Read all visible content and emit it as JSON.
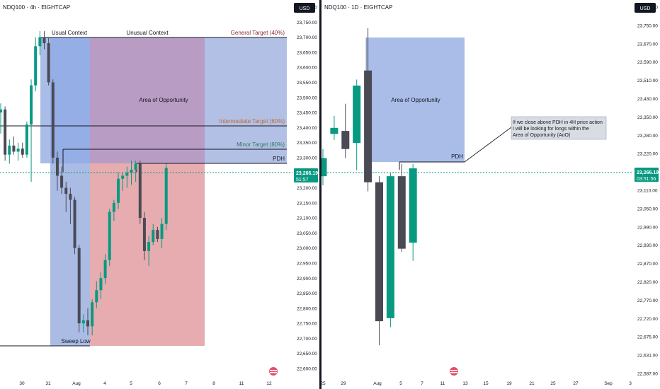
{
  "colors": {
    "bg": "#ffffff",
    "grid": "#f0f3fa",
    "text": "#131722",
    "axisText": "#131722",
    "bull": "#089981",
    "bear": "#4a4a55",
    "zoneBlue": "#a8b9e4",
    "zoneBlueStrong": "#7f9fe3",
    "zonePurple": "#b89bc6",
    "zoneRed": "#e8a7ad",
    "priceTag": "#089981",
    "separator": "#131722"
  },
  "left_chart": {
    "title": "NDQ100 · 4h · EIGHTCAP",
    "currency": "USD",
    "labels": {
      "usual_context": "Usual Context",
      "unusual_context": "Unusual Context",
      "general_target": "General Target (40%)",
      "area_of_opportunity": "Area of Opportunity",
      "intermediate_target": "Intermediate Target (60%)",
      "minor_target": "Minor Target (80%)",
      "pdh": "PDH",
      "sweep_low": "Sweep Low"
    },
    "price_tag": {
      "price": "23,266.19",
      "countdown": "51:57"
    },
    "x_ticks": [
      "30",
      "31",
      "Aug",
      "4",
      "5",
      "6",
      "7",
      "8",
      "11",
      "12"
    ],
    "y_ticks": [
      "23,800.00",
      "23,750.00",
      "23,700.00",
      "23,650.00",
      "23,600.00",
      "23,550.00",
      "23,500.00",
      "23,450.00",
      "23,400.00",
      "23,350.00",
      "23,300.00",
      "23,250.00",
      "23,200.00",
      "23,150.00",
      "23,100.00",
      "23,050.00",
      "23,000.00",
      "22,950.00",
      "22,900.00",
      "22,850.00",
      "22,800.00",
      "22,750.00",
      "22,700.00",
      "22,650.00",
      "22,600.00"
    ]
  },
  "right_chart": {
    "title": "NDQ100 · 1D · EIGHTCAP",
    "currency": "USD",
    "labels": {
      "area_of_opportunity": "Area of Opportunity",
      "pdh": "PDH",
      "note_line1": "If we close above PDH in 4H price action",
      "note_line2": "I will be looking for longs within the",
      "note_line3": "Area of Opportunity (AoO)"
    },
    "price_tag": {
      "price": "23,266.19",
      "countdown": "03:51:56"
    },
    "x_ticks": [
      "25",
      "29",
      "Aug",
      "5",
      "7",
      "11",
      "13",
      "15",
      "19",
      "21",
      "25",
      "27",
      "Sep",
      "3"
    ],
    "y_ticks": [
      "23,800.00",
      "23,750.00",
      "23,670.00",
      "23,590.00",
      "23,510.00",
      "23,430.00",
      "23,350.00",
      "23,280.00",
      "23,220.00",
      "23,170.00",
      "23,110.00",
      "23,050.00",
      "22,990.00",
      "22,930.00",
      "22,870.00",
      "22,820.00",
      "22,770.00",
      "22,720.00",
      "22,675.00",
      "22,631.00",
      "22,587.00"
    ]
  },
  "chart_data": [
    {
      "type": "candlestick",
      "title": "NDQ100 · 4h · EIGHTCAP",
      "ylim": [
        22600,
        23800
      ],
      "candles": [
        {
          "o": 23450,
          "h": 23480,
          "l": 23380,
          "c": 23460
        },
        {
          "o": 23460,
          "h": 23470,
          "l": 23290,
          "c": 23310
        },
        {
          "o": 23310,
          "h": 23360,
          "l": 23280,
          "c": 23340
        },
        {
          "o": 23340,
          "h": 23370,
          "l": 23310,
          "c": 23320
        },
        {
          "o": 23320,
          "h": 23350,
          "l": 23290,
          "c": 23330
        },
        {
          "o": 23330,
          "h": 23350,
          "l": 23300,
          "c": 23310
        },
        {
          "o": 23310,
          "h": 23420,
          "l": 23300,
          "c": 23410
        },
        {
          "o": 23410,
          "h": 23560,
          "l": 23220,
          "c": 23540
        },
        {
          "o": 23540,
          "h": 23700,
          "l": 23520,
          "c": 23670
        },
        {
          "o": 23670,
          "h": 23720,
          "l": 23640,
          "c": 23700
        },
        {
          "o": 23700,
          "h": 23720,
          "l": 23660,
          "c": 23680
        },
        {
          "o": 23680,
          "h": 23700,
          "l": 23540,
          "c": 23550
        },
        {
          "o": 23550,
          "h": 23560,
          "l": 23280,
          "c": 23300
        },
        {
          "o": 23300,
          "h": 23320,
          "l": 23190,
          "c": 23240
        },
        {
          "o": 23240,
          "h": 23270,
          "l": 23180,
          "c": 23200
        },
        {
          "o": 23200,
          "h": 23220,
          "l": 23120,
          "c": 23180
        },
        {
          "o": 23180,
          "h": 23200,
          "l": 23080,
          "c": 23160
        },
        {
          "o": 23160,
          "h": 23170,
          "l": 22980,
          "c": 23000
        },
        {
          "o": 23000,
          "h": 23010,
          "l": 22720,
          "c": 22750
        },
        {
          "o": 22750,
          "h": 22780,
          "l": 22720,
          "c": 22760
        },
        {
          "o": 22760,
          "h": 22800,
          "l": 22710,
          "c": 22740
        },
        {
          "o": 22740,
          "h": 22830,
          "l": 22710,
          "c": 22820
        },
        {
          "o": 22820,
          "h": 22890,
          "l": 22800,
          "c": 22860
        },
        {
          "o": 22860,
          "h": 22920,
          "l": 22830,
          "c": 22900
        },
        {
          "o": 22900,
          "h": 22980,
          "l": 22880,
          "c": 22960
        },
        {
          "o": 22960,
          "h": 23130,
          "l": 22940,
          "c": 23120
        },
        {
          "o": 23120,
          "h": 23160,
          "l": 23090,
          "c": 23150
        },
        {
          "o": 23150,
          "h": 23250,
          "l": 23130,
          "c": 23230
        },
        {
          "o": 23230,
          "h": 23250,
          "l": 23190,
          "c": 23240
        },
        {
          "o": 23240,
          "h": 23270,
          "l": 23200,
          "c": 23250
        },
        {
          "o": 23250,
          "h": 23290,
          "l": 23210,
          "c": 23260
        },
        {
          "o": 23260,
          "h": 23290,
          "l": 23220,
          "c": 23280
        },
        {
          "o": 23280,
          "h": 23290,
          "l": 23080,
          "c": 23100
        },
        {
          "o": 23100,
          "h": 23120,
          "l": 22960,
          "c": 22990
        },
        {
          "o": 22990,
          "h": 23040,
          "l": 22940,
          "c": 23020
        },
        {
          "o": 23020,
          "h": 23080,
          "l": 23010,
          "c": 23060
        },
        {
          "o": 23060,
          "h": 23070,
          "l": 23020,
          "c": 23030
        },
        {
          "o": 23030,
          "h": 23100,
          "l": 23000,
          "c": 23080
        },
        {
          "o": 23080,
          "h": 23280,
          "l": 23060,
          "c": 23266
        }
      ]
    },
    {
      "type": "candlestick",
      "title": "NDQ100 · 1D · EIGHTCAP",
      "ylim": [
        22587,
        23800
      ],
      "candles": [
        {
          "o": 23240,
          "h": 23330,
          "l": 23210,
          "c": 23300
        },
        {
          "o": 23380,
          "h": 23440,
          "l": 23360,
          "c": 23400
        },
        {
          "o": 23390,
          "h": 23480,
          "l": 23300,
          "c": 23330
        },
        {
          "o": 23350,
          "h": 23560,
          "l": 23260,
          "c": 23540
        },
        {
          "o": 23590,
          "h": 23730,
          "l": 23190,
          "c": 23220
        },
        {
          "o": 23220,
          "h": 23240,
          "l": 22680,
          "c": 22760
        },
        {
          "o": 22770,
          "h": 23250,
          "l": 22740,
          "c": 23240
        },
        {
          "o": 23240,
          "h": 23280,
          "l": 22990,
          "c": 23000
        },
        {
          "o": 23020,
          "h": 23280,
          "l": 22960,
          "c": 23266
        }
      ]
    }
  ]
}
